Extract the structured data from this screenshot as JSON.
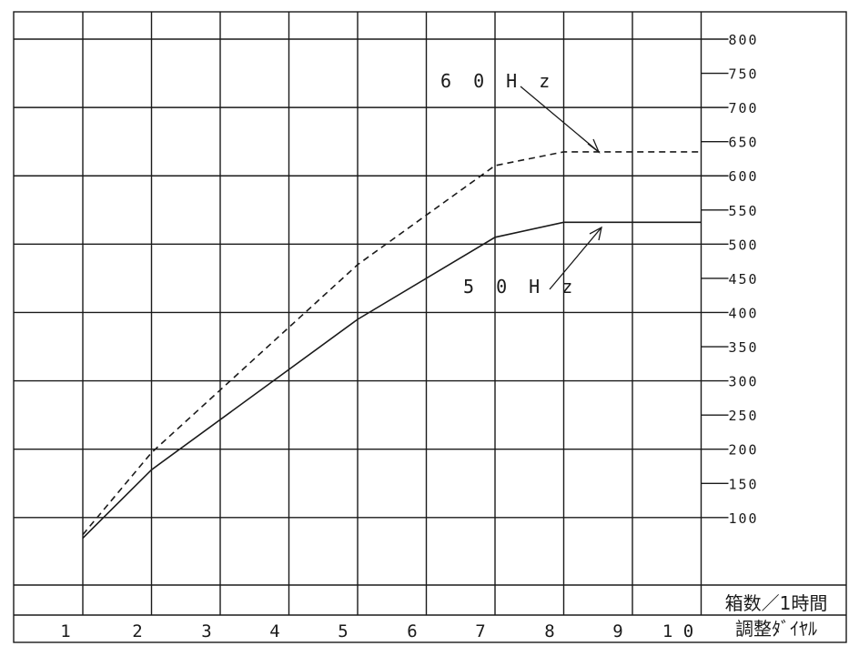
{
  "chart_data": {
    "type": "line",
    "ylabel": "箱数／1時間",
    "xlabel": "調整ﾀﾞｲﾔﾙ",
    "categories": [
      "1",
      "2",
      "3",
      "4",
      "5",
      "6",
      "7",
      "8",
      "9",
      "1 0"
    ],
    "y_ticks": [
      "800",
      "750",
      "700",
      "650",
      "600",
      "550",
      "500",
      "450",
      "400",
      "350",
      "300",
      "250",
      "200",
      "150",
      "100"
    ],
    "ylim": [
      50,
      800
    ],
    "grid": true,
    "series": [
      {
        "name": "6 0 H z",
        "style": "dashed",
        "x": [
          1,
          2,
          5,
          7,
          8,
          9,
          10,
          11
        ],
        "y": [
          75,
          195,
          470,
          615,
          635,
          635,
          635,
          635
        ]
      },
      {
        "name": "5 0 H z",
        "style": "solid",
        "x": [
          1,
          2,
          5,
          7,
          8,
          9,
          10
        ],
        "y": [
          70,
          170,
          390,
          510,
          532,
          532,
          532
        ]
      }
    ]
  },
  "colors": {
    "line": "#1a1a1a",
    "background": "#ffffff"
  }
}
